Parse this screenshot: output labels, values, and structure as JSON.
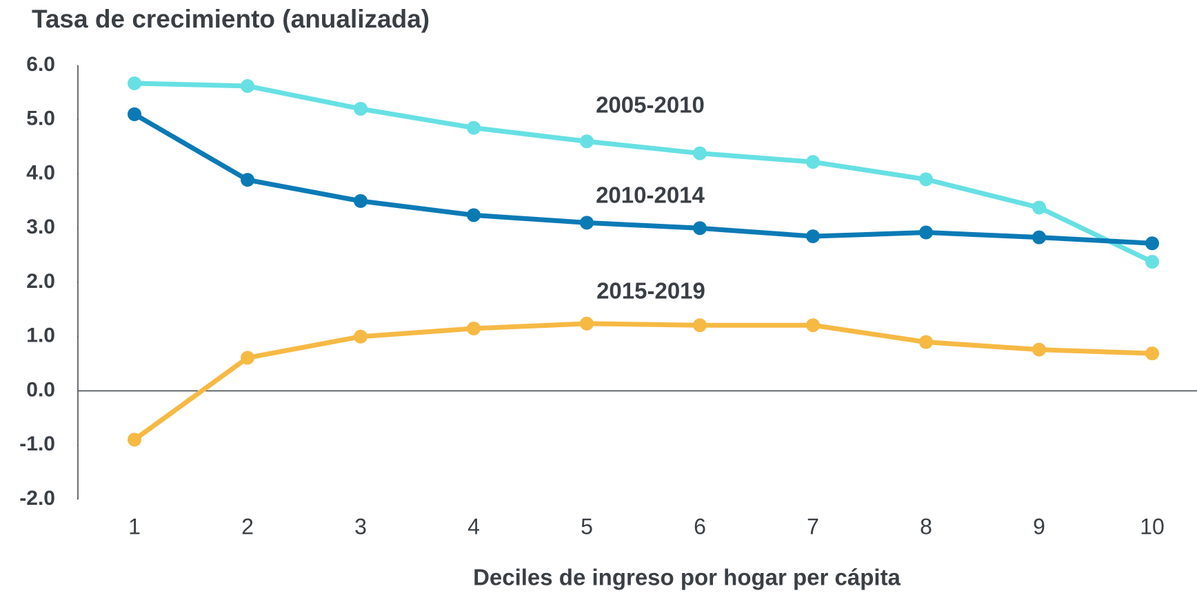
{
  "chart_data": {
    "type": "line",
    "title": "Tasa de crecimiento (anualizada)",
    "x_label": "Deciles de ingreso por hogar per cápita",
    "categories": [
      "1",
      "2",
      "3",
      "4",
      "5",
      "6",
      "7",
      "8",
      "9",
      "10"
    ],
    "series": [
      {
        "name": "2005-2010",
        "color": "#67e0e3",
        "values": [
          5.67,
          5.62,
          5.2,
          4.85,
          4.6,
          4.38,
          4.22,
          3.9,
          3.38,
          2.38
        ]
      },
      {
        "name": "2010-2014",
        "color": "#0a7ab5",
        "values": [
          5.1,
          3.89,
          3.5,
          3.24,
          3.1,
          3.0,
          2.85,
          2.92,
          2.83,
          2.72
        ]
      },
      {
        "name": "2015-2019",
        "color": "#f6b944",
        "values": [
          -0.9,
          0.61,
          1.0,
          1.15,
          1.24,
          1.21,
          1.21,
          0.9,
          0.76,
          0.69
        ]
      }
    ],
    "ylim": [
      -2,
      6
    ],
    "yticks": [
      {
        "value": -2,
        "label": "-2.0"
      },
      {
        "value": -1,
        "label": "-1.0"
      },
      {
        "value": 0,
        "label": "0.0"
      },
      {
        "value": 1,
        "label": "1.0"
      },
      {
        "value": 2,
        "label": "2.0"
      },
      {
        "value": 3,
        "label": "3.0"
      },
      {
        "value": 4,
        "label": "4.0"
      },
      {
        "value": 5,
        "label": "5.0"
      },
      {
        "value": 6,
        "label": "6.0"
      }
    ],
    "grid": false
  }
}
